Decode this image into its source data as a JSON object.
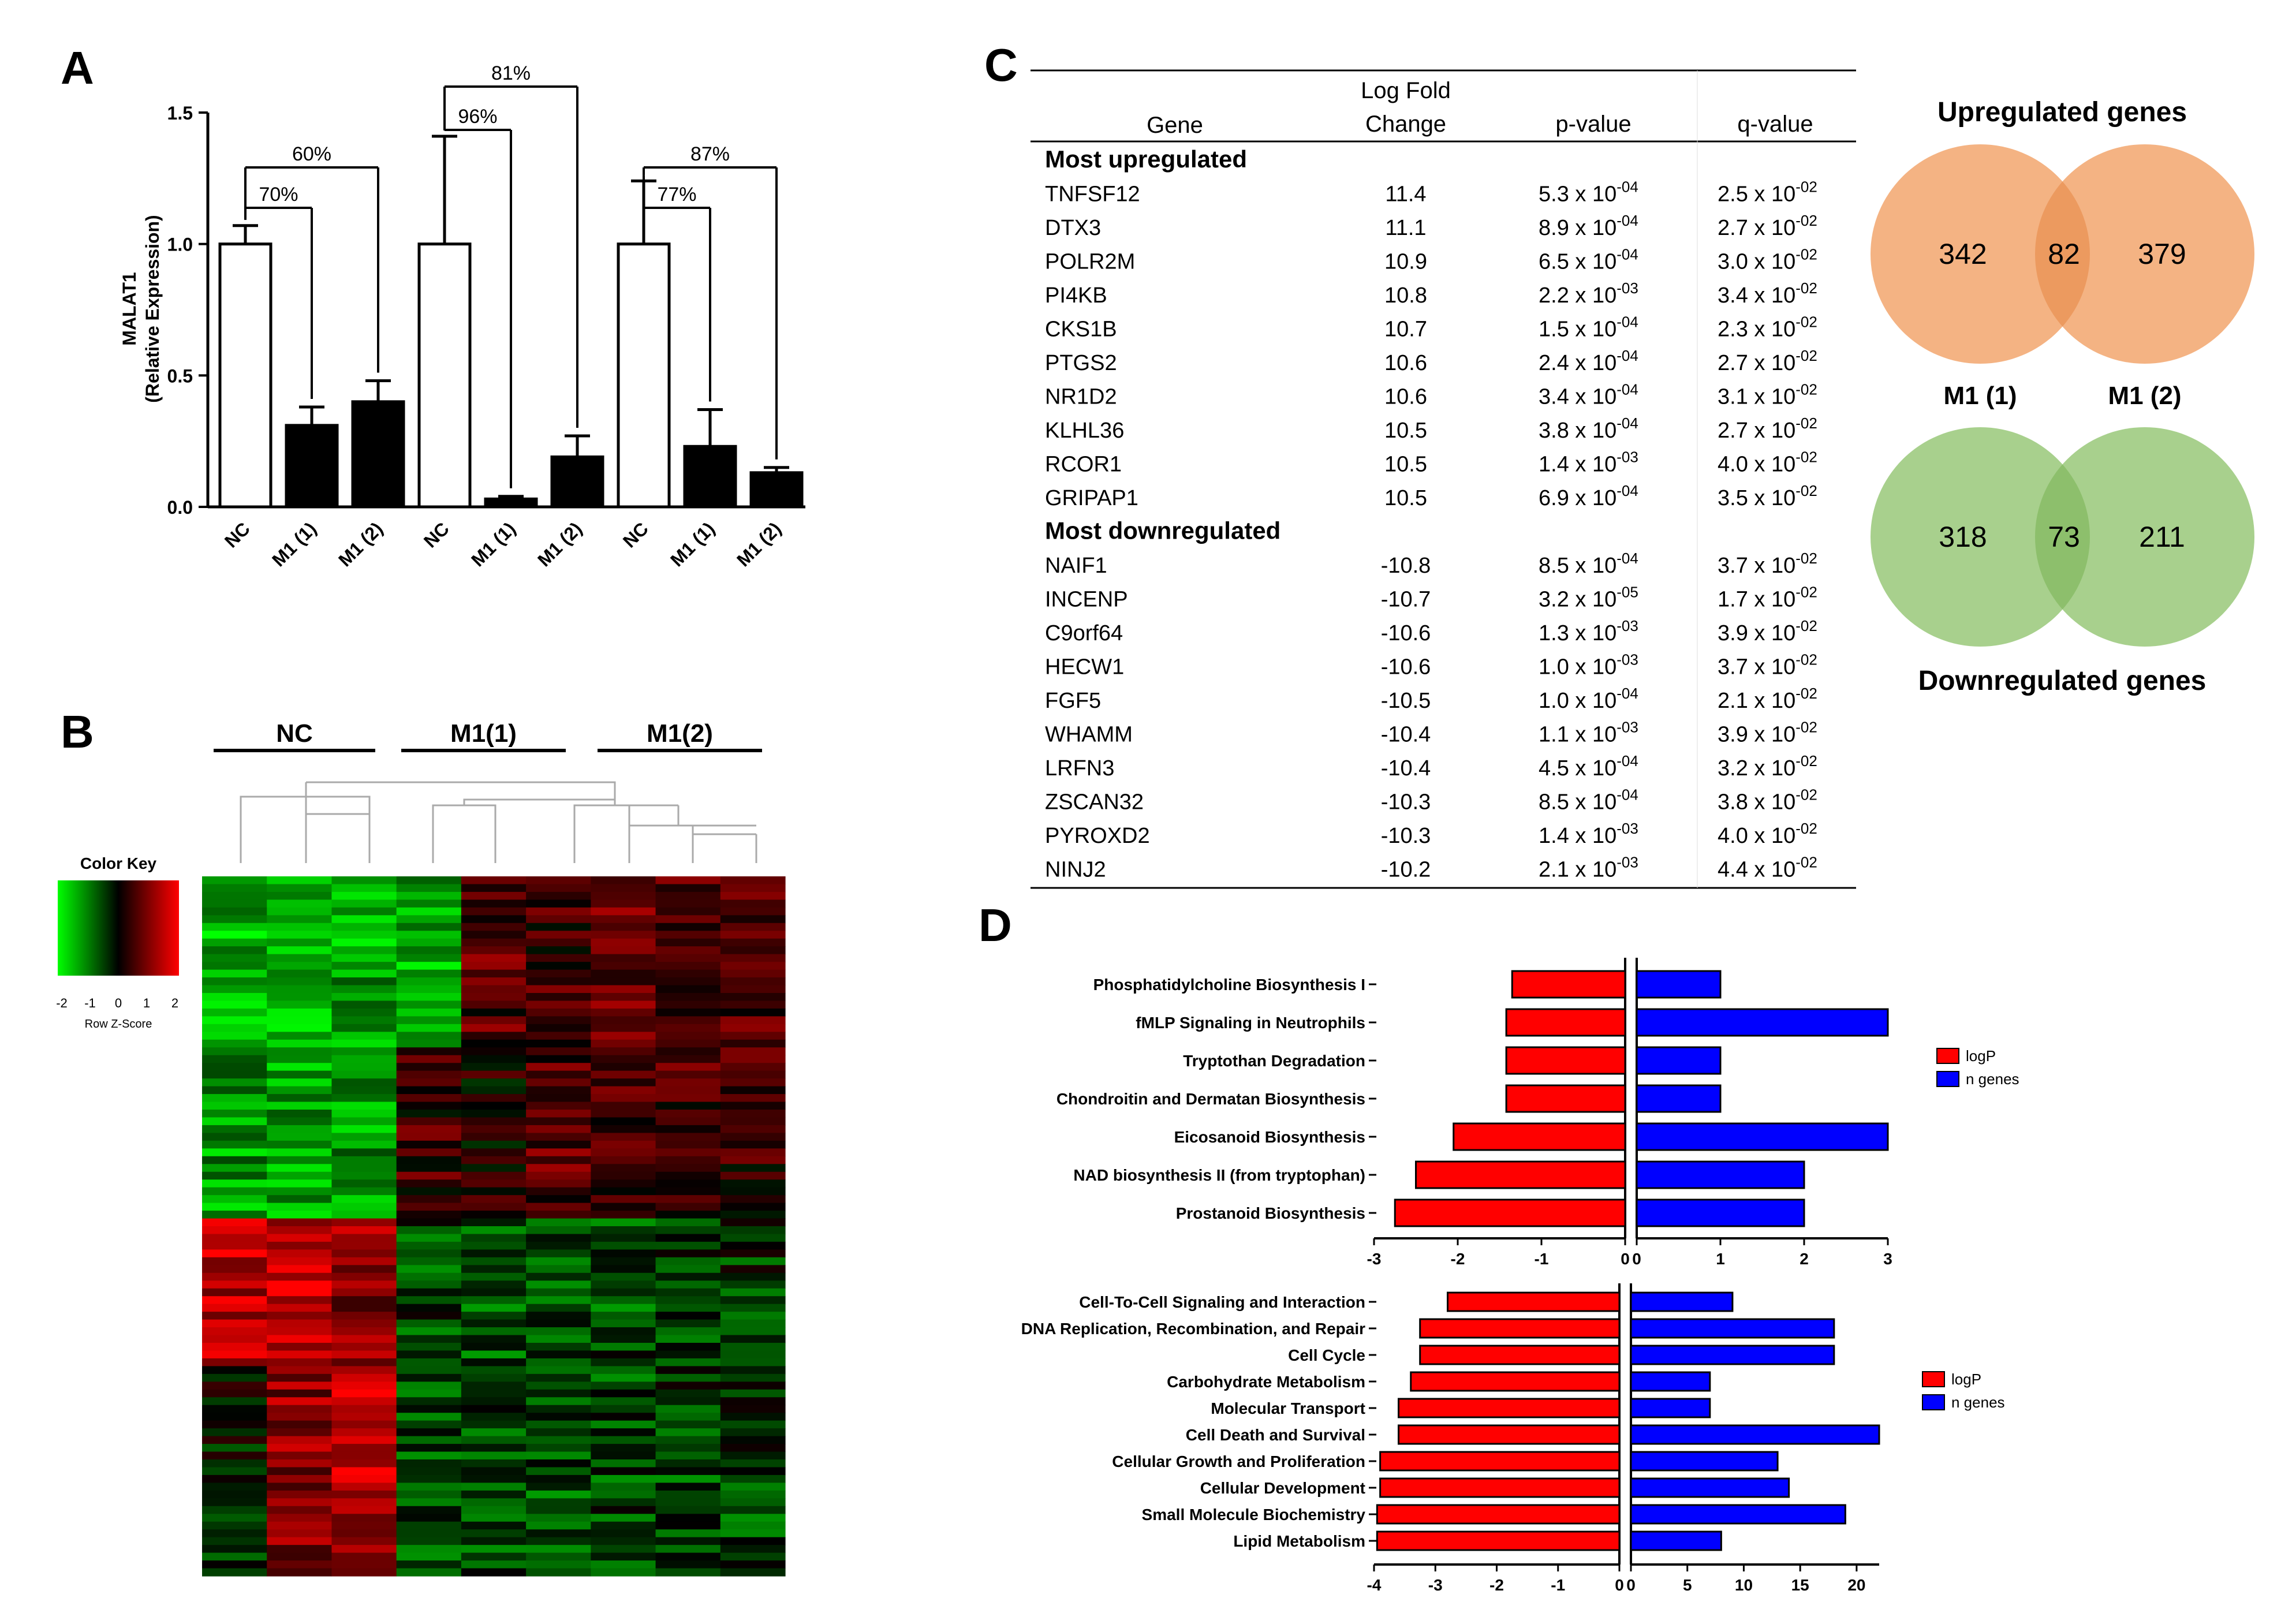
{
  "panel_labels": {
    "a": "A",
    "b": "B",
    "c": "C",
    "d": "D"
  },
  "colors": {
    "up_circle": "#f4b383",
    "up_overlap": "#ec9a5f",
    "down_circle": "#a8d08d",
    "down_overlap": "#8dbf6c",
    "logp": "#ff0000",
    "ngenes": "#0000ff"
  },
  "chart_data": [
    {
      "type": "bar",
      "panel": "A",
      "ylabel": "MALAT1",
      "ylabel2": "(Relative Expression)",
      "ylim": [
        0,
        1.5
      ],
      "yticks": [
        "0.0",
        "0.5",
        "1.0",
        "1.5"
      ],
      "categories": [
        "NC",
        "M1 (1)",
        "M1 (2)",
        "NC",
        "M1 (1)",
        "M1 (2)",
        "NC",
        "M1 (1)",
        "M1 (2)"
      ],
      "values": [
        1.0,
        0.31,
        0.4,
        1.0,
        0.03,
        0.19,
        1.0,
        0.23,
        0.13
      ],
      "errors": [
        0.07,
        0.07,
        0.08,
        0.41,
        0.01,
        0.08,
        0.24,
        0.14,
        0.02
      ],
      "fills": [
        "white",
        "black",
        "black",
        "white",
        "black",
        "black",
        "white",
        "black",
        "black"
      ],
      "brackets": [
        {
          "label": "70%",
          "from": 0,
          "to": 1
        },
        {
          "label": "60%",
          "from": 0,
          "to": 2
        },
        {
          "label": "96%",
          "from": 3,
          "to": 4
        },
        {
          "label": "81%",
          "from": 3,
          "to": 5
        },
        {
          "label": "77%",
          "from": 6,
          "to": 7
        },
        {
          "label": "87%",
          "from": 6,
          "to": 8
        }
      ]
    },
    {
      "type": "heatmap",
      "panel": "B",
      "group_labels": [
        "NC",
        "M1(1)",
        "M1(2)"
      ],
      "color_key_title": "Color Key",
      "color_key_ticks": [
        "-2",
        "-1",
        "0",
        "1",
        "2"
      ],
      "color_key_label": "Row Z-Score",
      "columns": 9,
      "rows": 90
    },
    {
      "type": "table",
      "panel": "C",
      "headers": {
        "gene": "Gene",
        "lfc1": "Log Fold",
        "lfc2": "Change",
        "p": "p-value",
        "q": "q-value"
      },
      "sections": [
        {
          "title": "Most upregulated",
          "rows": [
            {
              "gene": "TNFSF12",
              "lfc": "11.4",
              "p": "5.3",
              "pe": "-04",
              "q": "2.5",
              "qe": "-02"
            },
            {
              "gene": "DTX3",
              "lfc": "11.1",
              "p": "8.9",
              "pe": "-04",
              "q": "2.7",
              "qe": "-02"
            },
            {
              "gene": "POLR2M",
              "lfc": "10.9",
              "p": "6.5",
              "pe": "-04",
              "q": "3.0",
              "qe": "-02"
            },
            {
              "gene": "PI4KB",
              "lfc": "10.8",
              "p": "2.2",
              "pe": "-03",
              "q": "3.4",
              "qe": "-02"
            },
            {
              "gene": "CKS1B",
              "lfc": "10.7",
              "p": "1.5",
              "pe": "-04",
              "q": "2.3",
              "qe": "-02"
            },
            {
              "gene": "PTGS2",
              "lfc": "10.6",
              "p": "2.4",
              "pe": "-04",
              "q": "2.7",
              "qe": "-02"
            },
            {
              "gene": "NR1D2",
              "lfc": "10.6",
              "p": "3.4",
              "pe": "-04",
              "q": "3.1",
              "qe": "-02"
            },
            {
              "gene": "KLHL36",
              "lfc": "10.5",
              "p": "3.8",
              "pe": "-04",
              "q": "2.7",
              "qe": "-02"
            },
            {
              "gene": "RCOR1",
              "lfc": "10.5",
              "p": "1.4",
              "pe": "-03",
              "q": "4.0",
              "qe": "-02"
            },
            {
              "gene": "GRIPAP1",
              "lfc": "10.5",
              "p": "6.9",
              "pe": "-04",
              "q": "3.5",
              "qe": "-02"
            }
          ]
        },
        {
          "title": "Most downregulated",
          "rows": [
            {
              "gene": "NAIF1",
              "lfc": "-10.8",
              "p": "8.5",
              "pe": "-04",
              "q": "3.7",
              "qe": "-02"
            },
            {
              "gene": "INCENP",
              "lfc": "-10.7",
              "p": "3.2",
              "pe": "-05",
              "q": "1.7",
              "qe": "-02"
            },
            {
              "gene": "C9orf64",
              "lfc": "-10.6",
              "p": "1.3",
              "pe": "-03",
              "q": "3.9",
              "qe": "-02"
            },
            {
              "gene": "HECW1",
              "lfc": "-10.6",
              "p": "1.0",
              "pe": "-03",
              "q": "3.7",
              "qe": "-02"
            },
            {
              "gene": "FGF5",
              "lfc": "-10.5",
              "p": "1.0",
              "pe": "-04",
              "q": "2.1",
              "qe": "-02"
            },
            {
              "gene": "WHAMM",
              "lfc": "-10.4",
              "p": "1.1",
              "pe": "-03",
              "q": "3.9",
              "qe": "-02"
            },
            {
              "gene": "LRFN3",
              "lfc": "-10.4",
              "p": "4.5",
              "pe": "-04",
              "q": "3.2",
              "qe": "-02"
            },
            {
              "gene": "ZSCAN32",
              "lfc": "-10.3",
              "p": "8.5",
              "pe": "-04",
              "q": "3.8",
              "qe": "-02"
            },
            {
              "gene": "PYROXD2",
              "lfc": "-10.3",
              "p": "1.4",
              "pe": "-03",
              "q": "4.0",
              "qe": "-02"
            },
            {
              "gene": "NINJ2",
              "lfc": "-10.2",
              "p": "2.1",
              "pe": "-03",
              "q": "4.4",
              "qe": "-02"
            }
          ]
        }
      ]
    },
    {
      "type": "venn",
      "panel": "C",
      "up": {
        "title": "Upregulated genes",
        "left": 342,
        "overlap": 82,
        "right": 379
      },
      "set_labels": [
        "M1 (1)",
        "M1 (2)"
      ],
      "down": {
        "title": "Downregulated genes",
        "left": 318,
        "overlap": 73,
        "right": 211
      }
    },
    {
      "type": "bar",
      "panel": "D-top",
      "orientation": "horizontal",
      "categories": [
        "Phosphatidylcholine Biosynthesis I",
        "fMLP Signaling in Neutrophils",
        "Tryptothan Degradation",
        "Chondroitin and Dermatan Biosynthesis",
        "Eicosanoid Biosynthesis",
        "NAD biosynthesis II (from tryptophan)",
        "Prostanoid Biosynthesis"
      ],
      "series": [
        {
          "name": "logP",
          "values": [
            -1.35,
            -1.42,
            -1.42,
            -1.42,
            -2.05,
            -2.5,
            -2.75
          ]
        },
        {
          "name": "n genes",
          "values": [
            1,
            3,
            1,
            1,
            3,
            2,
            2
          ]
        }
      ],
      "left_ticks": [
        "-3",
        "-2",
        "-1",
        "0"
      ],
      "right_ticks": [
        "0",
        "1",
        "2",
        "3"
      ],
      "left_range": [
        -3,
        0
      ],
      "right_range": [
        0,
        3
      ]
    },
    {
      "type": "bar",
      "panel": "D-bottom",
      "orientation": "horizontal",
      "categories": [
        "Cell-To-Cell Signaling and Interaction",
        "DNA Replication, Recombination, and Repair",
        "Cell Cycle",
        "Carbohydrate Metabolism",
        "Molecular Transport",
        "Cell Death and Survival",
        "Cellular Growth and Proliferation",
        "Cellular Development",
        "Small Molecule Biochemistry",
        "Lipid Metabolism"
      ],
      "series": [
        {
          "name": "logP",
          "values": [
            -2.8,
            -3.25,
            -3.25,
            -3.4,
            -3.6,
            -3.6,
            -3.9,
            -3.9,
            -3.95,
            -3.95
          ]
        },
        {
          "name": "n genes",
          "values": [
            9,
            18,
            18,
            7,
            7,
            22,
            13,
            14,
            19,
            8
          ]
        }
      ],
      "left_ticks": [
        "-4",
        "-3",
        "-2",
        "-1",
        "0"
      ],
      "right_ticks": [
        "0",
        "5",
        "10",
        "15",
        "20"
      ],
      "left_range": [
        -4,
        0
      ],
      "right_range": [
        0,
        22
      ]
    }
  ]
}
